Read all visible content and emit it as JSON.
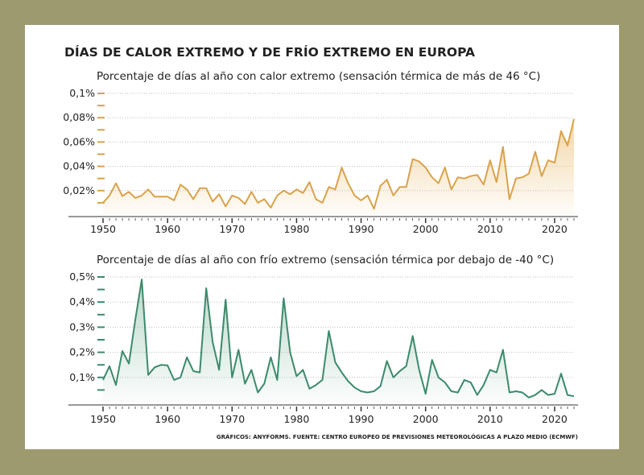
{
  "title": "DÍAS DE CALOR EXTREMO Y DE FRÍO EXTREMO EN EUROPA",
  "source": "GRÁFICOS: ANYFORMS. FUENTE: CENTRO EUROPEO DE PREVISIONES METEOROLÓGICAS A PLAZO MEDIO (ECMWF)",
  "colors": {
    "background": "#9d9b6e",
    "heat": "#d9a24a",
    "cold": "#3b8a6b"
  },
  "chart_data": [
    {
      "type": "area",
      "title": "Porcentaje de días al año con calor extremo (sensación térmica de más de 46 °C)",
      "x_start": 1950,
      "x_end": 2023,
      "xticks": [
        "1950",
        "1960",
        "1970",
        "1980",
        "1990",
        "2000",
        "2010",
        "2020"
      ],
      "yticks": [
        "0,02%",
        "0,04%",
        "0,06%",
        "0,08%",
        "0,1%"
      ],
      "ylim": [
        0,
        0.1
      ],
      "grid": true,
      "values": [
        0.01,
        0.016,
        0.026,
        0.0155,
        0.019,
        0.014,
        0.016,
        0.021,
        0.015,
        0.015,
        0.015,
        0.012,
        0.025,
        0.021,
        0.013,
        0.022,
        0.022,
        0.011,
        0.017,
        0.007,
        0.016,
        0.014,
        0.009,
        0.019,
        0.01,
        0.013,
        0.006,
        0.016,
        0.02,
        0.017,
        0.021,
        0.018,
        0.027,
        0.013,
        0.01,
        0.023,
        0.021,
        0.039,
        0.026,
        0.016,
        0.012,
        0.016,
        0.005,
        0.024,
        0.029,
        0.016,
        0.023,
        0.023,
        0.046,
        0.044,
        0.039,
        0.031,
        0.026,
        0.039,
        0.021,
        0.031,
        0.03,
        0.032,
        0.033,
        0.025,
        0.045,
        0.027,
        0.056,
        0.013,
        0.03,
        0.031,
        0.034,
        0.052,
        0.032,
        0.045,
        0.043,
        0.069,
        0.057,
        0.079
      ]
    },
    {
      "type": "area",
      "title": "Porcentaje de días al año con frío extremo (sensación térmica por debajo de -40 °C)",
      "x_start": 1950,
      "x_end": 2023,
      "xticks": [
        "1950",
        "1960",
        "1970",
        "1980",
        "1990",
        "2000",
        "2010",
        "2020"
      ],
      "yticks": [
        "0,1%",
        "0,2%",
        "0,3%",
        "0,4%",
        "0,5%"
      ],
      "ylim": [
        0,
        0.5
      ],
      "grid": true,
      "values": [
        0.09,
        0.145,
        0.07,
        0.205,
        0.155,
        0.33,
        0.49,
        0.11,
        0.14,
        0.15,
        0.148,
        0.09,
        0.1,
        0.18,
        0.125,
        0.12,
        0.455,
        0.24,
        0.13,
        0.41,
        0.1,
        0.21,
        0.075,
        0.13,
        0.04,
        0.075,
        0.18,
        0.09,
        0.415,
        0.2,
        0.105,
        0.13,
        0.055,
        0.07,
        0.09,
        0.285,
        0.16,
        0.12,
        0.085,
        0.06,
        0.045,
        0.04,
        0.045,
        0.065,
        0.165,
        0.1,
        0.125,
        0.145,
        0.265,
        0.13,
        0.035,
        0.17,
        0.1,
        0.08,
        0.045,
        0.04,
        0.09,
        0.08,
        0.03,
        0.07,
        0.13,
        0.12,
        0.21,
        0.04,
        0.045,
        0.04,
        0.02,
        0.03,
        0.05,
        0.03,
        0.035,
        0.115,
        0.03,
        0.025
      ]
    }
  ]
}
